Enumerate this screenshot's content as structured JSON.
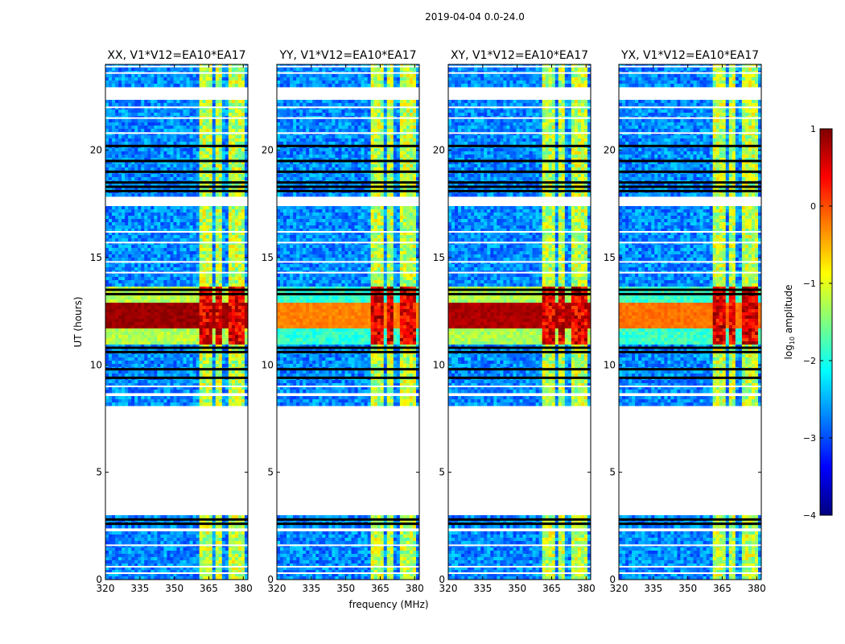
{
  "figure_title": "2019-04-04 0.0-24.0",
  "chart_data": {
    "type": "heatmap",
    "title": "2019-04-04 0.0-24.0",
    "xlabel": "frequency (MHz)",
    "ylabel": "UT (hours)",
    "xlim": [
      320,
      382
    ],
    "ylim": [
      0,
      24
    ],
    "x_ticks": [
      320,
      335,
      350,
      365,
      380
    ],
    "y_ticks": [
      0,
      5,
      10,
      15,
      20
    ],
    "panels": [
      {
        "title": "XX, V1*V12=EA10*EA17",
        "polarization": "XX",
        "low_freq_strength": 1.0
      },
      {
        "title": "YY, V1*V12=EA10*EA17",
        "polarization": "YY",
        "low_freq_strength": 0.35
      },
      {
        "title": "XY, V1*V12=EA10*EA17",
        "polarization": "XY",
        "low_freq_strength": 0.95
      },
      {
        "title": "YX, V1*V12=EA10*EA17",
        "polarization": "YX",
        "low_freq_strength": 0.4
      }
    ],
    "data_gaps_hours": [
      [
        3.05,
        8.1
      ],
      [
        17.4,
        17.85
      ],
      [
        8.5,
        8.72
      ],
      [
        22.4,
        23.0
      ],
      [
        2.3,
        2.45
      ]
    ],
    "rfi_channels_mhz": [
      [
        360.5,
        363
      ],
      [
        363,
        366.5
      ],
      [
        368,
        371
      ],
      [
        373,
        376
      ],
      [
        377,
        380
      ]
    ],
    "strong_event_hours": [
      11.0,
      13.7
    ],
    "colorbar": {
      "label": "log10 amplitude",
      "min": -4,
      "max": 1,
      "ticks": [
        1,
        0,
        -1,
        -2,
        -3,
        -4
      ],
      "tick_labels": [
        "1",
        "0",
        "−1",
        "−2",
        "−3",
        "−4"
      ],
      "colormap": "jet"
    }
  }
}
